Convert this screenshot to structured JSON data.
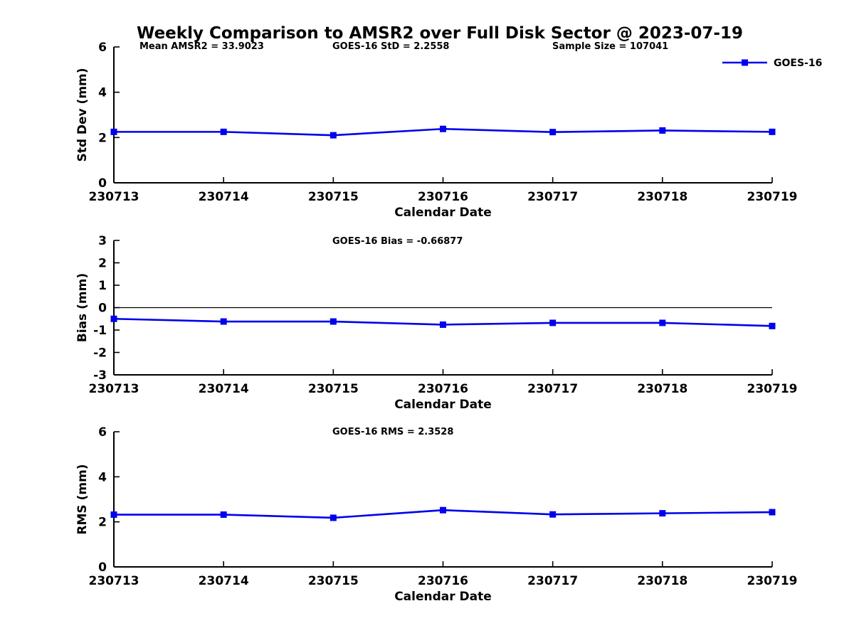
{
  "title": "Weekly Comparison to AMSR2 over Full Disk Sector @ 2023-07-19",
  "colors": {
    "series_line": "#0000EE",
    "axis": "#000000",
    "text": "#000000",
    "zero_line": "#000000",
    "background": "#FFFFFF"
  },
  "legend": {
    "label": "GOES-16",
    "position": "top-right"
  },
  "chart_data": [
    {
      "id": "std-dev",
      "type": "line",
      "title": "",
      "annotations": [
        "Mean AMSR2 = 33.9023",
        "GOES-16 StD = 2.2558",
        "Sample Size = 107041"
      ],
      "xlabel": "Calendar Date",
      "ylabel": "Std Dev (mm)",
      "categories": [
        "230713",
        "230714",
        "230715",
        "230716",
        "230717",
        "230718",
        "230719"
      ],
      "series": [
        {
          "name": "GOES-16",
          "marker": "square",
          "values": [
            2.25,
            2.25,
            2.1,
            2.38,
            2.24,
            2.31,
            2.25
          ]
        }
      ],
      "ylim": [
        0,
        6
      ],
      "yticks": [
        0,
        2,
        4,
        6
      ],
      "grid": false,
      "zero_line": false,
      "show_legend": true
    },
    {
      "id": "bias",
      "type": "line",
      "title": "",
      "annotations": [
        "GOES-16 Bias  = -0.66877"
      ],
      "xlabel": "Calendar Date",
      "ylabel": "Bias (mm)",
      "categories": [
        "230713",
        "230714",
        "230715",
        "230716",
        "230717",
        "230718",
        "230719"
      ],
      "series": [
        {
          "name": "GOES-16",
          "marker": "square",
          "values": [
            -0.5,
            -0.62,
            -0.62,
            -0.76,
            -0.68,
            -0.68,
            -0.82
          ]
        }
      ],
      "ylim": [
        -3,
        3
      ],
      "yticks": [
        -3,
        -2,
        -1,
        0,
        1,
        2,
        3
      ],
      "grid": false,
      "zero_line": true,
      "show_legend": false
    },
    {
      "id": "rms",
      "type": "line",
      "title": "",
      "annotations": [
        "GOES-16 RMS = 2.3528"
      ],
      "xlabel": "Calendar Date",
      "ylabel": "RMS (mm)",
      "categories": [
        "230713",
        "230714",
        "230715",
        "230716",
        "230717",
        "230718",
        "230719"
      ],
      "series": [
        {
          "name": "GOES-16",
          "marker": "square",
          "values": [
            2.32,
            2.32,
            2.18,
            2.52,
            2.33,
            2.38,
            2.43
          ]
        }
      ],
      "ylim": [
        0,
        6
      ],
      "yticks": [
        0,
        2,
        4,
        6
      ],
      "grid": false,
      "zero_line": false,
      "show_legend": false
    }
  ]
}
